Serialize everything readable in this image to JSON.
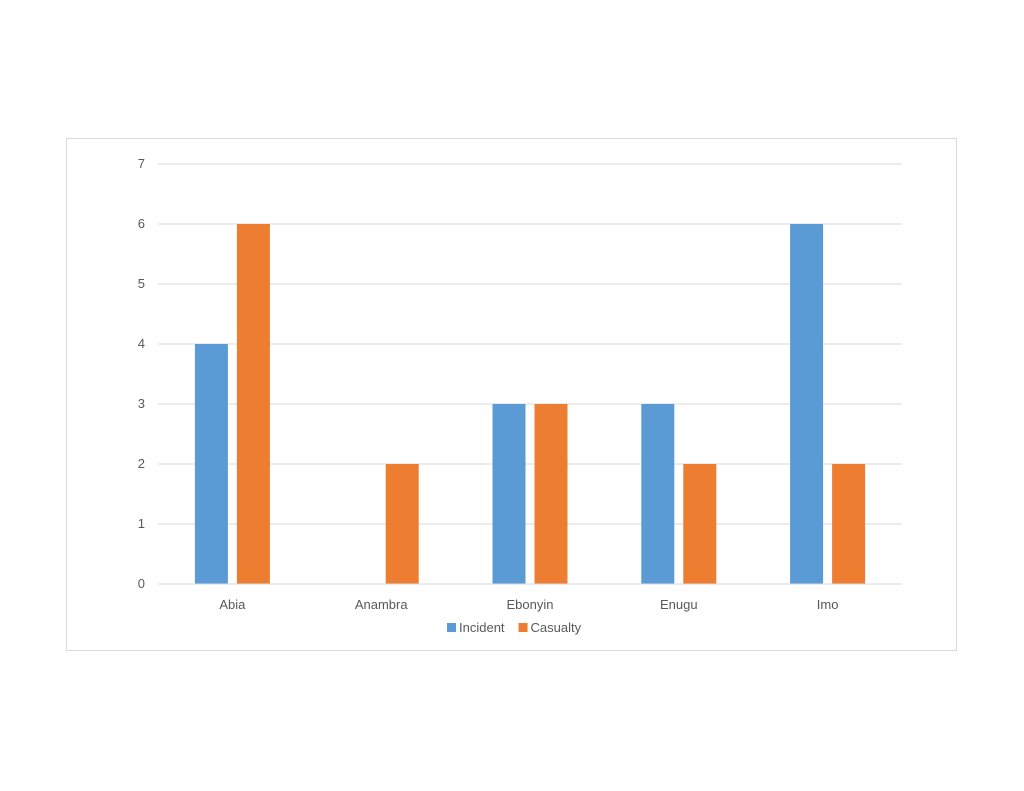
{
  "chart_data": {
    "type": "bar",
    "title": "",
    "xlabel": "",
    "ylabel": "",
    "categories": [
      "Abia",
      "Anambra",
      "Ebonyin",
      "Enugu",
      "Imo"
    ],
    "series": [
      {
        "name": "Incident",
        "values": [
          4,
          0,
          3,
          3,
          6
        ],
        "color": "#5B9BD5"
      },
      {
        "name": "Casualty",
        "values": [
          6,
          2,
          3,
          2,
          2
        ],
        "color": "#ED7D31"
      }
    ],
    "ylim": [
      0,
      7
    ],
    "yticks": [
      0,
      1,
      2,
      3,
      4,
      5,
      6,
      7
    ],
    "grid": true,
    "legend": "bottom"
  }
}
